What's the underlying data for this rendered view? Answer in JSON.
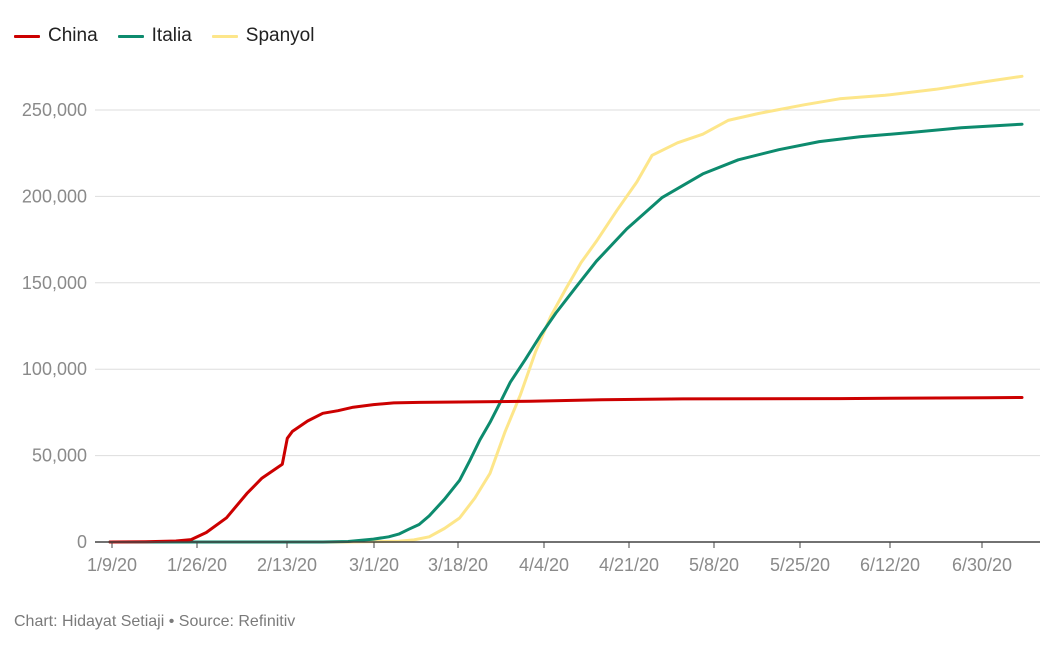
{
  "footer": {
    "credit": "Chart: Hidayat Setiaji • Source: Refinitiv"
  },
  "chart_data": {
    "type": "line",
    "title": "",
    "xlabel": "",
    "ylabel": "",
    "ylim": [
      0,
      270000
    ],
    "grid": true,
    "legend_position": "top-left",
    "y_ticks": [
      0,
      50000,
      100000,
      150000,
      200000,
      250000
    ],
    "y_tick_labels": [
      "0",
      "50,000",
      "100,000",
      "150,000",
      "200,000",
      "250,000"
    ],
    "x_tick_labels": [
      "1/9/20",
      "1/26/20",
      "2/13/20",
      "3/1/20",
      "3/18/20",
      "4/4/20",
      "4/21/20",
      "5/8/20",
      "5/25/20",
      "6/12/20",
      "6/30/20"
    ],
    "x_range": [
      "2020-01-09",
      "2020-07-07"
    ],
    "series": [
      {
        "name": "China",
        "color": "#cc0000",
        "points": [
          [
            "2020-01-09",
            0
          ],
          [
            "2020-01-16",
            100
          ],
          [
            "2020-01-22",
            600
          ],
          [
            "2020-01-25",
            1400
          ],
          [
            "2020-01-28",
            5500
          ],
          [
            "2020-02-01",
            14000
          ],
          [
            "2020-02-05",
            28000
          ],
          [
            "2020-02-08",
            37000
          ],
          [
            "2020-02-12",
            45000
          ],
          [
            "2020-02-13",
            60000
          ],
          [
            "2020-02-14",
            64000
          ],
          [
            "2020-02-17",
            70000
          ],
          [
            "2020-02-20",
            74500
          ],
          [
            "2020-02-23",
            76000
          ],
          [
            "2020-02-26",
            78000
          ],
          [
            "2020-03-01",
            79500
          ],
          [
            "2020-03-05",
            80500
          ],
          [
            "2020-03-10",
            80800
          ],
          [
            "2020-03-18",
            81000
          ],
          [
            "2020-04-01",
            81500
          ],
          [
            "2020-04-15",
            82300
          ],
          [
            "2020-05-01",
            82800
          ],
          [
            "2020-06-01",
            83000
          ],
          [
            "2020-06-30",
            83500
          ],
          [
            "2020-07-07",
            83600
          ]
        ]
      },
      {
        "name": "Italia",
        "color": "#0d8b6e",
        "points": [
          [
            "2020-01-09",
            0
          ],
          [
            "2020-02-20",
            0
          ],
          [
            "2020-02-25",
            300
          ],
          [
            "2020-03-01",
            1700
          ],
          [
            "2020-03-04",
            3000
          ],
          [
            "2020-03-06",
            4600
          ],
          [
            "2020-03-08",
            7400
          ],
          [
            "2020-03-10",
            10100
          ],
          [
            "2020-03-12",
            15100
          ],
          [
            "2020-03-15",
            24700
          ],
          [
            "2020-03-18",
            35700
          ],
          [
            "2020-03-20",
            47000
          ],
          [
            "2020-03-22",
            59100
          ],
          [
            "2020-03-24",
            69200
          ],
          [
            "2020-03-26",
            80600
          ],
          [
            "2020-03-28",
            92500
          ],
          [
            "2020-03-31",
            105800
          ],
          [
            "2020-04-03",
            119800
          ],
          [
            "2020-04-06",
            132500
          ],
          [
            "2020-04-10",
            147600
          ],
          [
            "2020-04-14",
            162500
          ],
          [
            "2020-04-20",
            181200
          ],
          [
            "2020-04-27",
            199400
          ],
          [
            "2020-05-05",
            213000
          ],
          [
            "2020-05-12",
            221200
          ],
          [
            "2020-05-20",
            227000
          ],
          [
            "2020-05-28",
            231700
          ],
          [
            "2020-06-05",
            234500
          ],
          [
            "2020-06-15",
            237000
          ],
          [
            "2020-06-25",
            239700
          ],
          [
            "2020-07-07",
            241800
          ]
        ]
      },
      {
        "name": "Spanyol",
        "color": "#fde68a",
        "points": [
          [
            "2020-01-09",
            0
          ],
          [
            "2020-02-25",
            0
          ],
          [
            "2020-03-06",
            400
          ],
          [
            "2020-03-09",
            1200
          ],
          [
            "2020-03-12",
            3000
          ],
          [
            "2020-03-15",
            7800
          ],
          [
            "2020-03-18",
            13900
          ],
          [
            "2020-03-21",
            25400
          ],
          [
            "2020-03-24",
            39700
          ],
          [
            "2020-03-27",
            64000
          ],
          [
            "2020-03-30",
            85200
          ],
          [
            "2020-04-02",
            110200
          ],
          [
            "2020-04-05",
            130700
          ],
          [
            "2020-04-08",
            146700
          ],
          [
            "2020-04-11",
            161800
          ],
          [
            "2020-04-14",
            174000
          ],
          [
            "2020-04-18",
            191700
          ],
          [
            "2020-04-22",
            208400
          ],
          [
            "2020-04-25",
            223800
          ],
          [
            "2020-04-30",
            231000
          ],
          [
            "2020-05-05",
            236000
          ],
          [
            "2020-05-10",
            244000
          ],
          [
            "2020-05-16",
            248000
          ],
          [
            "2020-05-25",
            253000
          ],
          [
            "2020-06-01",
            256500
          ],
          [
            "2020-06-10",
            258500
          ],
          [
            "2020-06-20",
            262000
          ],
          [
            "2020-06-30",
            266500
          ],
          [
            "2020-07-07",
            269500
          ]
        ]
      }
    ]
  }
}
